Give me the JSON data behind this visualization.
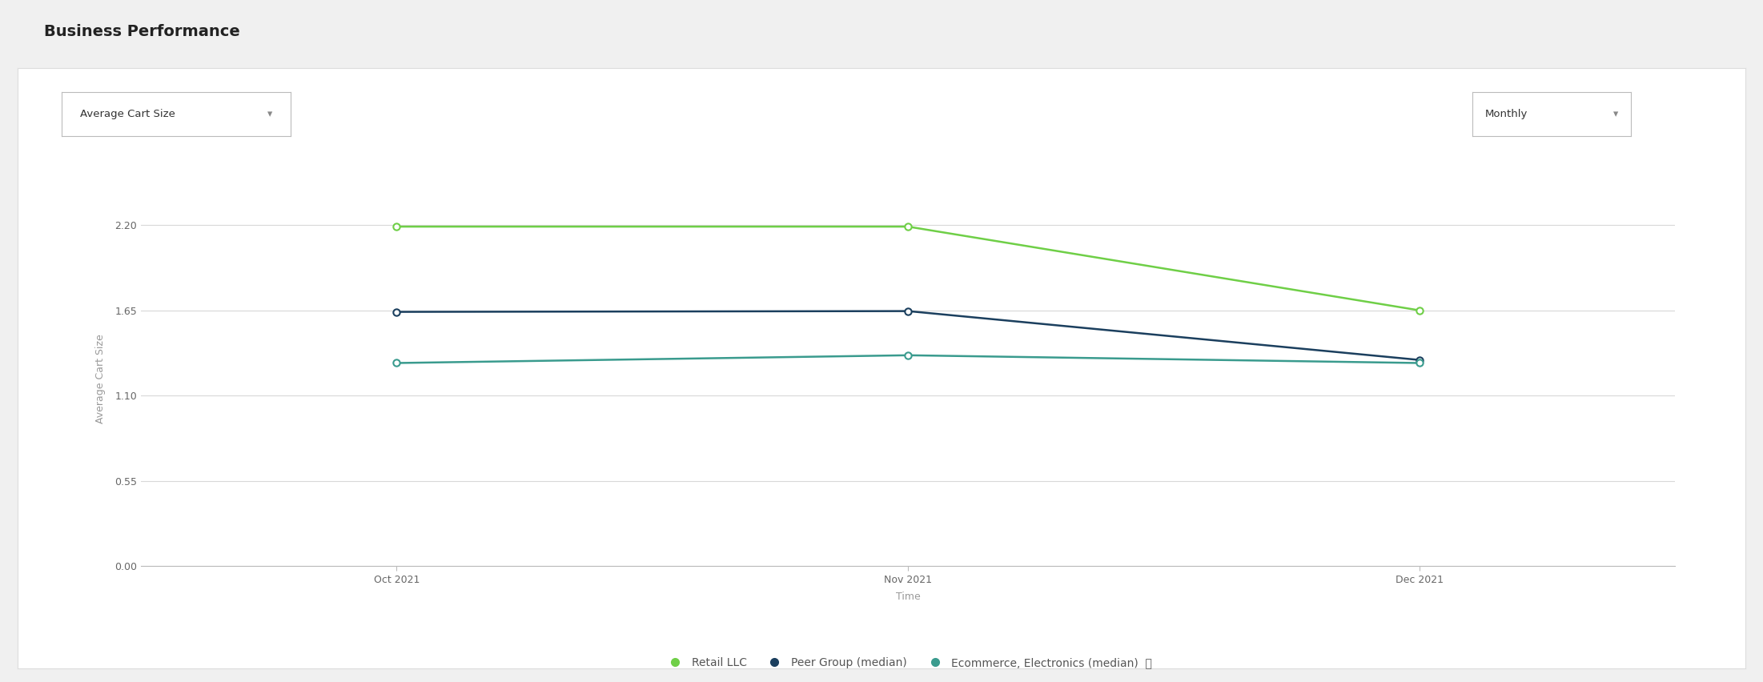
{
  "title": "Business Performance",
  "dropdown_left": "Average Cart Size",
  "dropdown_right": "Monthly",
  "xlabel": "Time",
  "ylabel": "Average Cart Size",
  "x_labels": [
    "Oct 2021",
    "Nov 2021",
    "Dec 2021"
  ],
  "x_values": [
    0,
    1,
    2
  ],
  "series": [
    {
      "name": "Retail LLC",
      "values": [
        2.19,
        2.19,
        1.65
      ],
      "color": "#6FCF47",
      "marker_color": "#6FCF47",
      "linewidth": 1.8
    },
    {
      "name": "Peer Group (median)",
      "values": [
        1.64,
        1.645,
        1.33
      ],
      "color": "#1B3F5E",
      "marker_color": "#1B3F5E",
      "linewidth": 1.8
    },
    {
      "name": "Ecommerce, Electronics (median)",
      "values": [
        1.31,
        1.36,
        1.31
      ],
      "color": "#3A9B8E",
      "marker_color": "#3A9B8E",
      "linewidth": 1.8
    }
  ],
  "ylim": [
    0.0,
    2.42
  ],
  "yticks": [
    0.0,
    0.55,
    1.1,
    1.65,
    2.2
  ],
  "ytick_labels": [
    "0.00",
    "0.55",
    "1.10",
    "1.65",
    "2.20"
  ],
  "background_color": "#f0f0f0",
  "card_color": "#ffffff",
  "plot_background": "#ffffff",
  "grid_color": "#d8d8d8",
  "title_fontsize": 14,
  "axis_label_fontsize": 9,
  "tick_fontsize": 9,
  "legend_fontsize": 10
}
